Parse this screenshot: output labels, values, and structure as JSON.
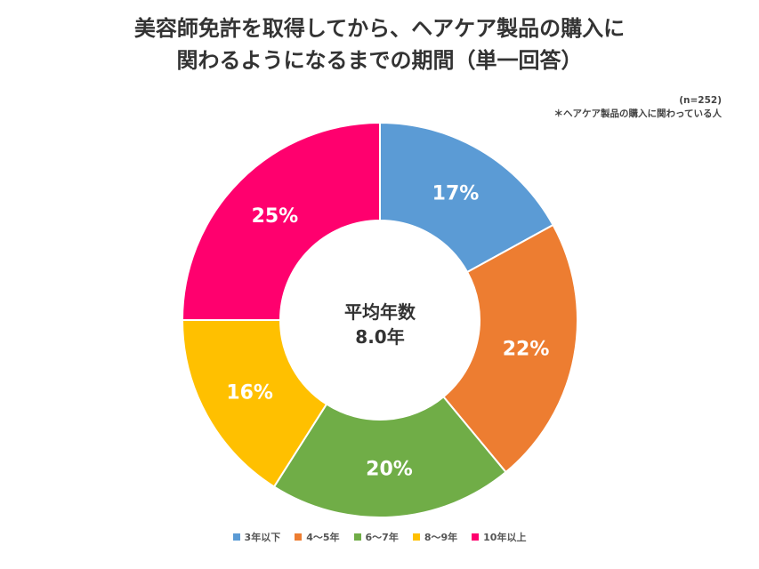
{
  "header": {
    "title_line1": "美容師免許を取得してから、ヘアケア製品の購入に",
    "title_line2": "関わるようになるまでの期間（単一回答）"
  },
  "note": {
    "sample": "(n=252)",
    "footnote": "＊ヘアケア製品の購入に関わっている人"
  },
  "chart_data": {
    "type": "pie",
    "variant": "donut",
    "title": "美容師免許を取得してから、ヘアケア製品の購入に関わるようになるまでの期間（単一回答）",
    "categories": [
      "3年以下",
      "4〜5年",
      "6〜7年",
      "8〜9年",
      "10年以上"
    ],
    "values": [
      17,
      22,
      20,
      16,
      25
    ],
    "labels": [
      "17%",
      "22%",
      "20%",
      "16%",
      "25%"
    ],
    "unit": "%",
    "colors": [
      "#5b9bd5",
      "#ed7d31",
      "#70ad47",
      "#ffc000",
      "#ff006e"
    ],
    "center_label_line1": "平均年数",
    "center_label_line2": "8.0年",
    "legend_position": "bottom"
  }
}
